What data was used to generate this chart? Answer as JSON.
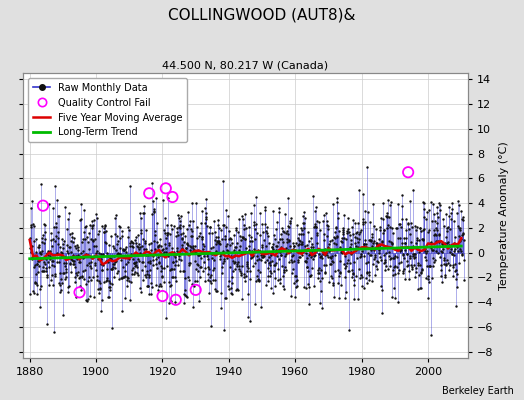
{
  "title": "COLLINGWOOD (AUT8)&",
  "subtitle": "44.500 N, 80.217 W (Canada)",
  "ylabel": "Temperature Anomaly (°C)",
  "credit": "Berkeley Earth",
  "xlim": [
    1878,
    2012
  ],
  "ylim": [
    -8.5,
    14.5
  ],
  "yticks": [
    -8,
    -6,
    -4,
    -2,
    0,
    2,
    4,
    6,
    8,
    10,
    12,
    14
  ],
  "xticks": [
    1880,
    1900,
    1920,
    1940,
    1960,
    1980,
    2000
  ],
  "seed": 17,
  "year_start": 1880,
  "year_end": 2010,
  "bg_color": "#e0e0e0",
  "plot_bg_color": "#ffffff",
  "line_color_raw": "#3333cc",
  "dot_color_raw": "#111111",
  "moving_avg_color": "#dd0000",
  "trend_color": "#00bb00",
  "qc_fail_color": "#ff00ff",
  "grid_color": "#cccccc",
  "qc_years": [
    1884,
    1895,
    1916,
    1920,
    1921,
    1923,
    1924,
    1930,
    1994
  ],
  "qc_vals": [
    3.8,
    -3.2,
    4.8,
    -3.5,
    5.2,
    4.5,
    -3.8,
    -3.0,
    6.5
  ]
}
